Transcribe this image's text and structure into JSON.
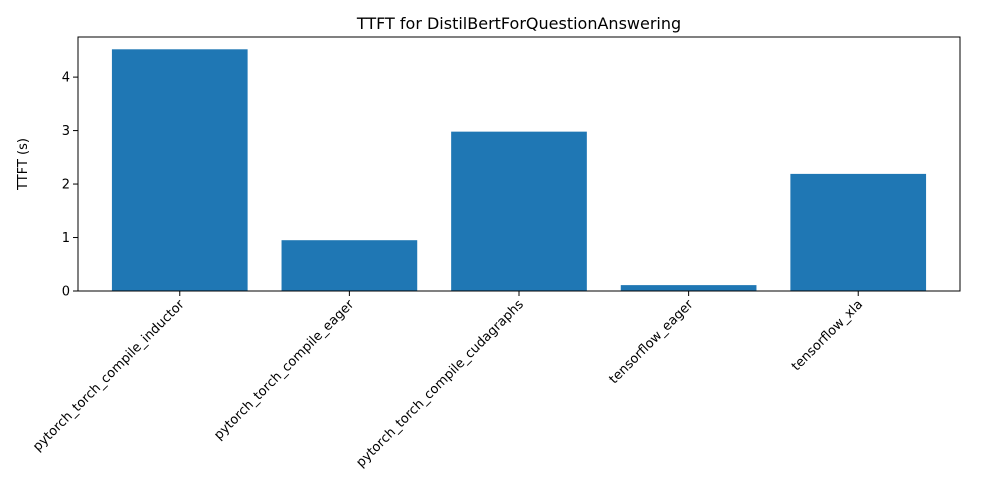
{
  "chart_data": {
    "type": "bar",
    "title": "TTFT for DistilBertForQuestionAnswering",
    "xlabel": "",
    "ylabel": "TTFT (s)",
    "categories": [
      "pytorch_torch_compile_inductor",
      "pytorch_torch_compile_eager",
      "pytorch_torch_compile_cudagraphs",
      "tensorflow_eager",
      "tensorflow_xla"
    ],
    "values": [
      4.52,
      0.95,
      2.98,
      0.11,
      2.19
    ],
    "ylim": [
      0,
      4.75
    ],
    "yticks": [
      0,
      1,
      2,
      3,
      4
    ],
    "bar_color": "#1f77b4",
    "grid": false,
    "legend": "none"
  }
}
